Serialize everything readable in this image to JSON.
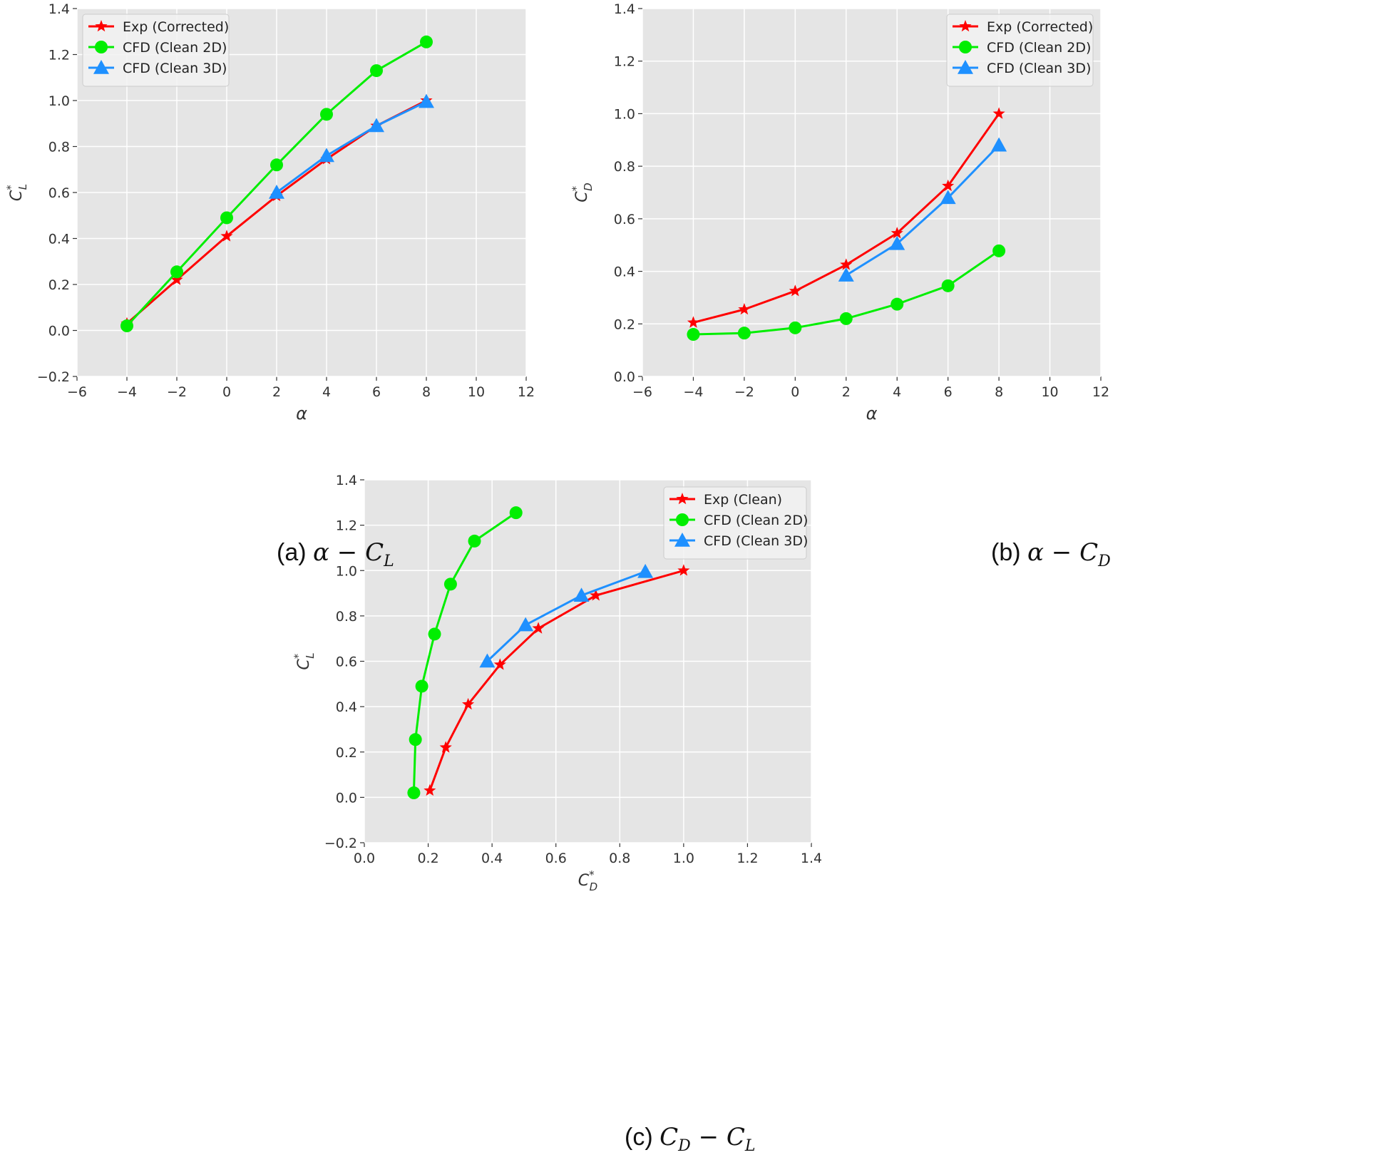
{
  "colors": {
    "exp": "#ff0000",
    "cfd2d": "#00ee00",
    "cfd3d": "#1e90ff",
    "plot_bg": "#e5e5e5",
    "grid": "#ffffff"
  },
  "chart_data": [
    {
      "id": "a",
      "type": "line",
      "xlabel": "α",
      "ylabel": "C*L",
      "xlim": [
        -6,
        12
      ],
      "ylim": [
        -0.2,
        1.4
      ],
      "xticks": [
        "−6",
        "−4",
        "−2",
        "0",
        "2",
        "4",
        "6",
        "8",
        "10",
        "12"
      ],
      "yticks": [
        "−0.2",
        "0.0",
        "0.2",
        "0.4",
        "0.6",
        "0.8",
        "1.0",
        "1.2",
        "1.4"
      ],
      "legend_position": "top-left",
      "series": [
        {
          "name": "Exp (Corrected)",
          "marker": "star",
          "color_key": "exp",
          "x": [
            -4,
            -2,
            0,
            2,
            4,
            6,
            8
          ],
          "y": [
            0.03,
            0.22,
            0.41,
            0.585,
            0.745,
            0.89,
            1.0
          ]
        },
        {
          "name": "CFD (Clean 2D)",
          "marker": "circle",
          "color_key": "cfd2d",
          "x": [
            -4,
            -2,
            0,
            2,
            4,
            6,
            8
          ],
          "y": [
            0.02,
            0.255,
            0.49,
            0.72,
            0.94,
            1.13,
            1.255
          ]
        },
        {
          "name": "CFD (Clean 3D)",
          "marker": "triangle",
          "color_key": "cfd3d",
          "x": [
            2,
            4,
            6,
            8
          ],
          "y": [
            0.6,
            0.76,
            0.89,
            0.995
          ]
        }
      ],
      "caption": {
        "prefix": "(a)",
        "math": "α − C",
        "sub": "L"
      }
    },
    {
      "id": "b",
      "type": "line",
      "xlabel": "α",
      "ylabel": "C*D",
      "xlim": [
        -6,
        12
      ],
      "ylim": [
        0.0,
        1.4
      ],
      "xticks": [
        "−6",
        "−4",
        "−2",
        "0",
        "2",
        "4",
        "6",
        "8",
        "10",
        "12"
      ],
      "yticks": [
        "0.0",
        "0.2",
        "0.4",
        "0.6",
        "0.8",
        "1.0",
        "1.2",
        "1.4"
      ],
      "legend_position": "top-right",
      "series": [
        {
          "name": "Exp (Corrected)",
          "marker": "star",
          "color_key": "exp",
          "x": [
            -4,
            -2,
            0,
            2,
            4,
            6,
            8
          ],
          "y": [
            0.205,
            0.255,
            0.325,
            0.425,
            0.545,
            0.725,
            1.0
          ]
        },
        {
          "name": "CFD (Clean 2D)",
          "marker": "circle",
          "color_key": "cfd2d",
          "x": [
            -4,
            -2,
            0,
            2,
            4,
            6,
            8
          ],
          "y": [
            0.16,
            0.165,
            0.185,
            0.22,
            0.275,
            0.345,
            0.478
          ]
        },
        {
          "name": "CFD (Clean 3D)",
          "marker": "triangle",
          "color_key": "cfd3d",
          "x": [
            2,
            4,
            6,
            8
          ],
          "y": [
            0.385,
            0.505,
            0.68,
            0.88
          ]
        }
      ],
      "caption": {
        "prefix": "(b)",
        "math": "α − C",
        "sub": "D"
      }
    },
    {
      "id": "c",
      "type": "line",
      "xlabel": "C*D",
      "ylabel": "C*L",
      "xlim": [
        0.0,
        1.4
      ],
      "ylim": [
        -0.2,
        1.4
      ],
      "xticks": [
        "0.0",
        "0.2",
        "0.4",
        "0.6",
        "0.8",
        "1.0",
        "1.2",
        "1.4"
      ],
      "yticks": [
        "−0.2",
        "0.0",
        "0.2",
        "0.4",
        "0.6",
        "0.8",
        "1.0",
        "1.2",
        "1.4"
      ],
      "legend_position": "top-right",
      "series": [
        {
          "name": "Exp (Clean)",
          "marker": "star",
          "color_key": "exp",
          "x": [
            0.205,
            0.255,
            0.325,
            0.425,
            0.545,
            0.725,
            1.0
          ],
          "y": [
            0.03,
            0.22,
            0.41,
            0.585,
            0.745,
            0.89,
            1.0
          ]
        },
        {
          "name": "CFD (Clean 2D)",
          "marker": "circle",
          "color_key": "cfd2d",
          "x": [
            0.155,
            0.16,
            0.18,
            0.22,
            0.27,
            0.345,
            0.475
          ],
          "y": [
            0.02,
            0.255,
            0.49,
            0.72,
            0.94,
            1.13,
            1.255
          ]
        },
        {
          "name": "CFD (Clean 3D)",
          "marker": "triangle",
          "color_key": "cfd3d",
          "x": [
            0.385,
            0.505,
            0.68,
            0.88
          ],
          "y": [
            0.6,
            0.76,
            0.89,
            0.995
          ]
        }
      ],
      "caption": {
        "prefix": "(c)",
        "math": "C",
        "sub": "D",
        "math2": " − C",
        "sub2": "L"
      }
    }
  ]
}
